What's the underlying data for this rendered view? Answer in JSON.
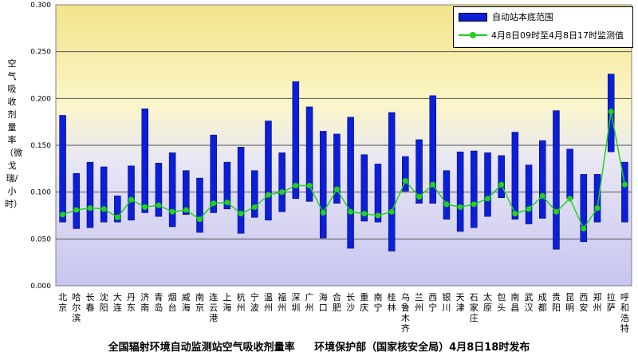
{
  "chart_data": {
    "type": "bar",
    "ylabel": "空气吸收剂量率（微戈瑞/小时）",
    "ylim": [
      0,
      0.3
    ],
    "yticks": [
      "0.000",
      "0.050",
      "0.100",
      "0.150",
      "0.200",
      "0.250",
      "0.300"
    ],
    "categories": [
      "北京",
      "哈尔滨",
      "长春",
      "沈阳",
      "大连",
      "丹东",
      "济南",
      "青岛",
      "烟台",
      "威海",
      "南京",
      "连云港",
      "上海",
      "杭州",
      "宁波",
      "温州",
      "福州",
      "深圳",
      "广州",
      "海口",
      "合肥",
      "长沙",
      "重庆",
      "南宁",
      "桂林",
      "乌鲁木齐",
      "兰州",
      "西宁",
      "银川",
      "天津",
      "石家庄",
      "太原",
      "包头",
      "南昌",
      "武汉",
      "成都",
      "贵阳",
      "昆明",
      "西安",
      "郑州",
      "拉萨",
      "呼和浩特"
    ],
    "series": [
      {
        "name": "自动站本底范围",
        "type": "range-bar",
        "low": [
          0.068,
          0.061,
          0.062,
          0.068,
          0.068,
          0.07,
          0.078,
          0.074,
          0.063,
          0.076,
          0.057,
          0.078,
          0.082,
          0.056,
          0.073,
          0.07,
          0.079,
          0.093,
          0.09,
          0.051,
          0.088,
          0.04,
          0.069,
          0.068,
          0.037,
          0.101,
          0.088,
          0.088,
          0.071,
          0.058,
          0.062,
          0.074,
          0.094,
          0.071,
          0.066,
          0.072,
          0.039,
          0.093,
          0.047,
          0.068,
          0.143,
          0.068
        ],
        "high": [
          0.182,
          0.12,
          0.132,
          0.127,
          0.096,
          0.128,
          0.189,
          0.131,
          0.142,
          0.123,
          0.115,
          0.161,
          0.132,
          0.148,
          0.123,
          0.176,
          0.142,
          0.218,
          0.191,
          0.165,
          0.162,
          0.18,
          0.14,
          0.13,
          0.185,
          0.138,
          0.156,
          0.203,
          0.123,
          0.143,
          0.144,
          0.142,
          0.139,
          0.164,
          0.129,
          0.155,
          0.187,
          0.146,
          0.119,
          0.119,
          0.226,
          0.132
        ]
      },
      {
        "name": "4月8日09时至4月8日17时监测值",
        "type": "line",
        "values": [
          0.076,
          0.081,
          0.083,
          0.082,
          0.073,
          0.092,
          0.084,
          0.086,
          0.079,
          0.081,
          0.071,
          0.088,
          0.089,
          0.077,
          0.084,
          0.097,
          0.1,
          0.107,
          0.107,
          0.078,
          0.103,
          0.079,
          0.077,
          0.075,
          0.079,
          0.112,
          0.095,
          0.108,
          0.087,
          0.084,
          0.087,
          0.093,
          0.108,
          0.077,
          0.082,
          0.096,
          0.079,
          0.093,
          0.061,
          0.083,
          0.186,
          0.108
        ]
      }
    ]
  },
  "footer": {
    "left": "全国辐射环境自动监测站空气吸收剂量率",
    "right": "环境保护部（国家核安全局）4月8日18时发布"
  },
  "colors": {
    "bar": "#0b1fd8",
    "line": "#21d31c",
    "grid": "#555555"
  }
}
